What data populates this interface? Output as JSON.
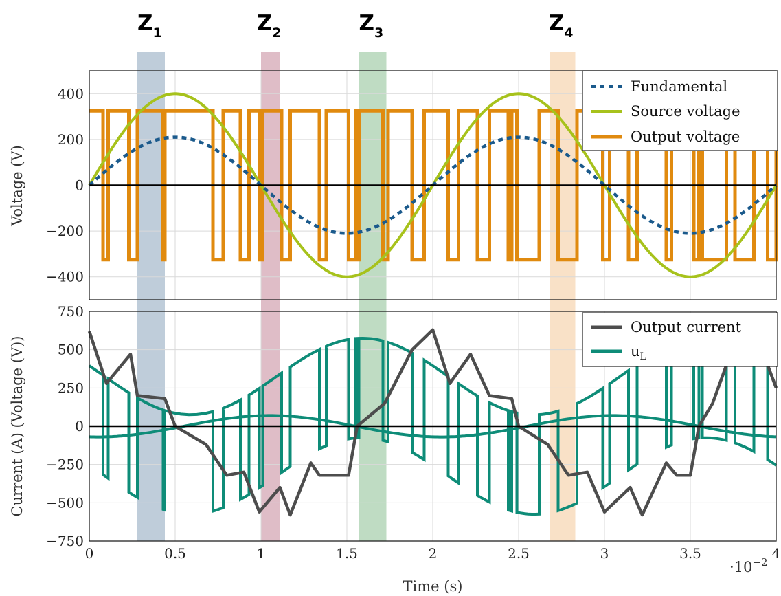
{
  "zones": [
    {
      "letter": "Z",
      "sub": "1",
      "t_start": 0.0028,
      "t_end": 0.0044,
      "color": "#7f9bb6"
    },
    {
      "letter": "Z",
      "sub": "2",
      "t_start": 0.01,
      "t_end": 0.0111,
      "color": "#c07b90"
    },
    {
      "letter": "Z",
      "sub": "3",
      "t_start": 0.0157,
      "t_end": 0.0173,
      "color": "#7fba88"
    },
    {
      "letter": "Z",
      "sub": "4",
      "t_start": 0.0268,
      "t_end": 0.0283,
      "color": "#f4c48f"
    }
  ],
  "chart_data": [
    {
      "type": "line",
      "ylabel": "Voltage (V)",
      "xlim": [
        0,
        0.04
      ],
      "ylim": [
        -500,
        500
      ],
      "yticks": [
        400,
        200,
        0,
        -200,
        -400
      ],
      "ytick_labels": [
        "400",
        "200",
        "0",
        "−200",
        "−400"
      ],
      "grid": true,
      "legend_position": "top-right",
      "series": [
        {
          "name": "Fundamental",
          "style": "dashed",
          "color": "#1b5a8c",
          "kind": "sine",
          "amplitude": 210,
          "frequency_hz": 50,
          "phase": 0
        },
        {
          "name": "Source voltage",
          "style": "solid",
          "color": "#a7c21c",
          "kind": "sine",
          "amplitude": 400,
          "frequency_hz": 50,
          "phase": 0
        },
        {
          "name": "Output voltage",
          "style": "solid",
          "color": "#e08a0f",
          "kind": "pwm",
          "level": 325,
          "switch_times": [
            0,
            0.0008,
            0.0011,
            0.0023,
            0.0028,
            0.0043,
            0.0044,
            0.0072,
            0.0078,
            0.0088,
            0.0093,
            0.0099,
            0.0101,
            0.0112,
            0.0117,
            0.0134,
            0.0138,
            0.0151,
            0.0155,
            0.0156,
            0.0157,
            0.0171,
            0.0174,
            0.0188,
            0.0195,
            0.0209,
            0.0215,
            0.0226,
            0.0233,
            0.0244,
            0.0246,
            0.0249,
            0.0262,
            0.0273,
            0.0284,
            0.0299,
            0.0303,
            0.0314,
            0.0319,
            0.0336,
            0.0339,
            0.0352,
            0.0355,
            0.0357,
            0.0371,
            0.0376,
            0.0387,
            0.0395,
            0.04
          ]
        }
      ]
    },
    {
      "type": "line",
      "ylabel": "Current (A) (Voltage (V))",
      "xlabel": "Time (s)",
      "x_multiplier": "·10",
      "x_multiplier_exp": "−2",
      "xlim": [
        0,
        0.04
      ],
      "xticks": [
        0,
        0.005,
        0.01,
        0.015,
        0.02,
        0.025,
        0.03,
        0.035,
        0.04
      ],
      "xtick_labels": [
        "0",
        "0.5",
        "1",
        "1.5",
        "2",
        "2.5",
        "3",
        "3.5",
        "4"
      ],
      "ylim": [
        -750,
        750
      ],
      "yticks": [
        750,
        500,
        250,
        0,
        -250,
        -500,
        -750
      ],
      "ytick_labels": [
        "750",
        "500",
        "250",
        "0",
        "−250",
        "−500",
        "−750"
      ],
      "grid": true,
      "legend_position": "top-right",
      "series": [
        {
          "name": "Output current",
          "color": "#4d4d4d",
          "x": [
            0,
            0.001,
            0.0024,
            0.0028,
            0.0044,
            0.005,
            0.0068,
            0.008,
            0.009,
            0.0099,
            0.0111,
            0.0117,
            0.0129,
            0.0134,
            0.0151,
            0.0156,
            0.0172,
            0.0188,
            0.02,
            0.021,
            0.0222,
            0.0233,
            0.0246,
            0.025,
            0.0267,
            0.0279,
            0.029,
            0.03,
            0.0315,
            0.0322,
            0.0336,
            0.0342,
            0.035,
            0.0355,
            0.0363,
            0.0372,
            0.0395,
            0.04
          ],
          "y": [
            620,
            280,
            470,
            200,
            180,
            0,
            -120,
            -320,
            -300,
            -560,
            -400,
            -580,
            -240,
            -320,
            -320,
            0,
            150,
            500,
            630,
            280,
            470,
            200,
            180,
            0,
            -120,
            -320,
            -300,
            -560,
            -400,
            -580,
            -240,
            -320,
            -320,
            0,
            150,
            430,
            400,
            250
          ]
        },
        {
          "name": "uₗ",
          "name_text": "u",
          "name_sub": "L",
          "color": "#0e8c78",
          "kind": "pwm-envelope",
          "level": 325
        }
      ]
    }
  ]
}
